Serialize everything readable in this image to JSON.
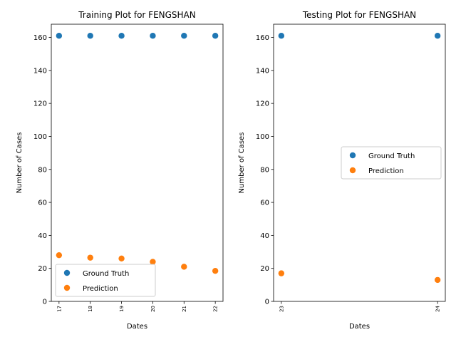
{
  "colors": {
    "ground_truth": "#1f77b4",
    "prediction": "#ff7f0e",
    "legend_border": "#cccccc"
  },
  "chart_data": [
    {
      "type": "scatter",
      "title": "Training Plot for FENGSHAN",
      "xlabel": "Dates",
      "ylabel": "Number of Cases",
      "x": [
        "17",
        "18",
        "19",
        "20",
        "21",
        "22"
      ],
      "ylim": [
        0,
        168
      ],
      "yticks": [
        "0",
        "20",
        "40",
        "60",
        "80",
        "100",
        "120",
        "140",
        "160"
      ],
      "grid": false,
      "legend_loc": "lower-left",
      "series": [
        {
          "name": "Ground Truth",
          "values": [
            161,
            161,
            161,
            161,
            161,
            161
          ]
        },
        {
          "name": "Prediction",
          "values": [
            28,
            26.5,
            26,
            24,
            21,
            18.5
          ]
        }
      ]
    },
    {
      "type": "scatter",
      "title": "Testing Plot for FENGSHAN",
      "xlabel": "Dates",
      "ylabel": "Number of Cases",
      "x": [
        "23",
        "24"
      ],
      "ylim": [
        0,
        168
      ],
      "yticks": [
        "0",
        "20",
        "40",
        "60",
        "80",
        "100",
        "120",
        "140",
        "160"
      ],
      "grid": false,
      "legend_loc": "center-right",
      "series": [
        {
          "name": "Ground Truth",
          "values": [
            161,
            161
          ]
        },
        {
          "name": "Prediction",
          "values": [
            17,
            13
          ]
        }
      ]
    }
  ]
}
